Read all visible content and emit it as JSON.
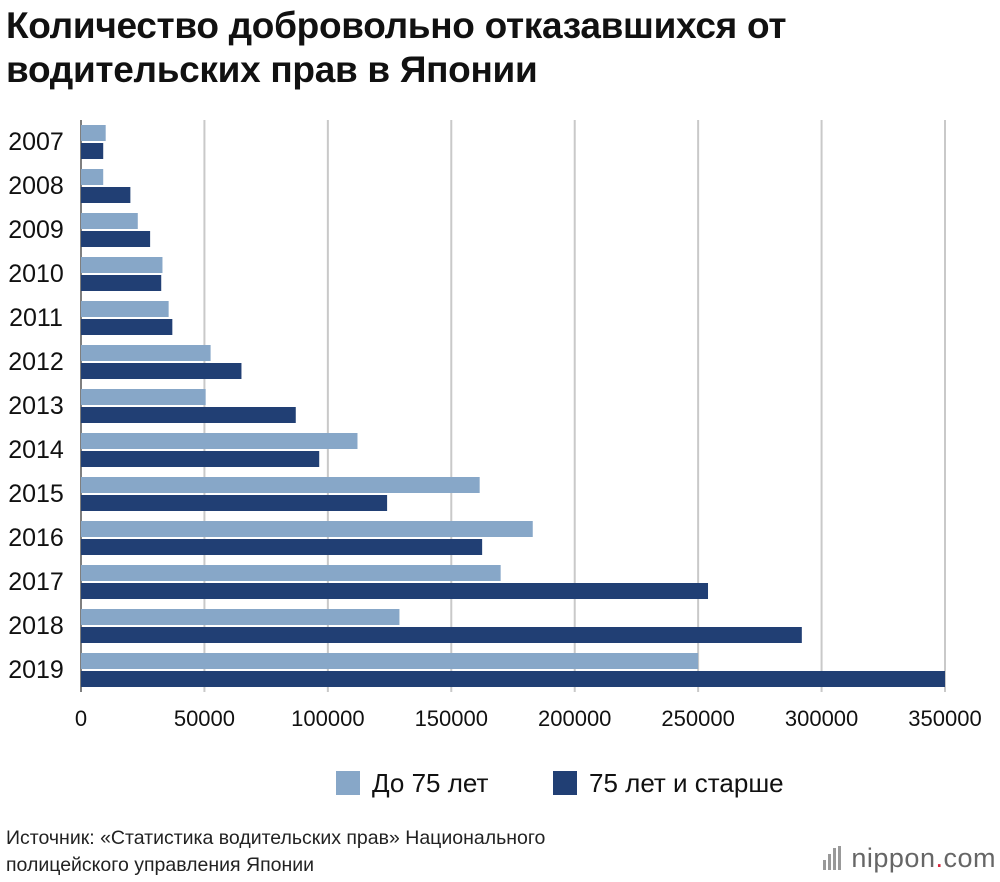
{
  "title": "Количество добровольно отказавшихся от водительских прав в Японии",
  "legend": {
    "under75": "До 75 лет",
    "over75": "75 лет и старше"
  },
  "source": {
    "line1": "Источник: «Статистика водительских прав» Национального",
    "line2": "полицейского управления Японии"
  },
  "logo": {
    "name": "nippon",
    "dot": ".",
    "suffix": "com"
  },
  "colors": {
    "under75": "#87a7c8",
    "over75": "#213f74",
    "grid": "#c9c9c9"
  },
  "chart_data": {
    "type": "bar",
    "orientation": "horizontal",
    "title": "Количество добровольно отказавшихся от водительских прав в Японии",
    "categories": [
      "2007",
      "2008",
      "2009",
      "2010",
      "2011",
      "2012",
      "2013",
      "2014",
      "2015",
      "2016",
      "2017",
      "2018",
      "2019"
    ],
    "series": [
      {
        "name": "До 75 лет",
        "values": [
          10000,
          9000,
          23000,
          33000,
          35500,
          52500,
          50500,
          112000,
          161500,
          183000,
          170000,
          129000,
          250000
        ]
      },
      {
        "name": "75 лет и старше",
        "values": [
          9000,
          20000,
          28000,
          32500,
          37000,
          65000,
          87000,
          96500,
          124000,
          162500,
          254000,
          292000,
          351000
        ]
      }
    ],
    "xlim": [
      0,
      350000
    ],
    "xticks": [
      "0",
      "50000",
      "100000",
      "150000",
      "200000",
      "250000",
      "300000",
      "350000"
    ],
    "xlabel": "",
    "ylabel": "",
    "grid": "vertical",
    "legend_position": "bottom"
  }
}
